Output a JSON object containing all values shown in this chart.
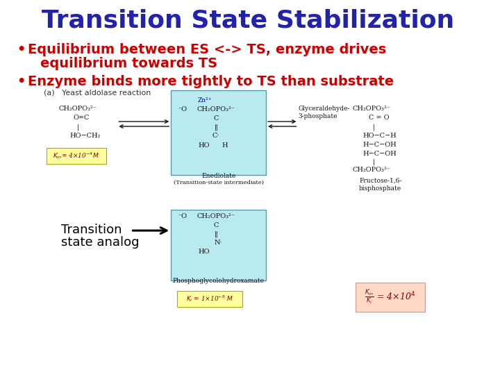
{
  "title": "Transition State Stabilization",
  "title_color": "#2222AA",
  "title_fontsize": 26,
  "title_font": "Comic Sans MS",
  "bullet1_line1": "Equilibrium between ES <-> TS, enzyme drives",
  "bullet1_line2": "equilibrium towards TS",
  "bullet2": "Enzyme binds more tightly to TS than substrate",
  "bullet_color": "#CC0000",
  "bullet_fontsize": 14,
  "bullet_font": "Comic Sans MS",
  "annotation_text1": "Transition",
  "annotation_text2": "state analog",
  "annotation_color": "#000000",
  "annotation_fontsize": 13,
  "annotation_font": "Comic Sans MS",
  "background_color": "#FFFFFF",
  "slide_label_a": "(a)   Yeast aldolase reaction",
  "slide_label_font": "Arial",
  "slide_label_size": 8,
  "diagram_text_color": "#111111",
  "diagram_font": "DejaVu Serif",
  "diagram_fontsize": 7,
  "cyan_color": "#B8EAF0",
  "cyan_edge": "#5599AA",
  "yellow_color": "#FFFFA0",
  "yellow_edge": "#AAAA00",
  "pink_color": "#FFD8C8",
  "pink_edge": "#CC9988",
  "red_dark": "#8B0000",
  "arrow_color": "#111111"
}
